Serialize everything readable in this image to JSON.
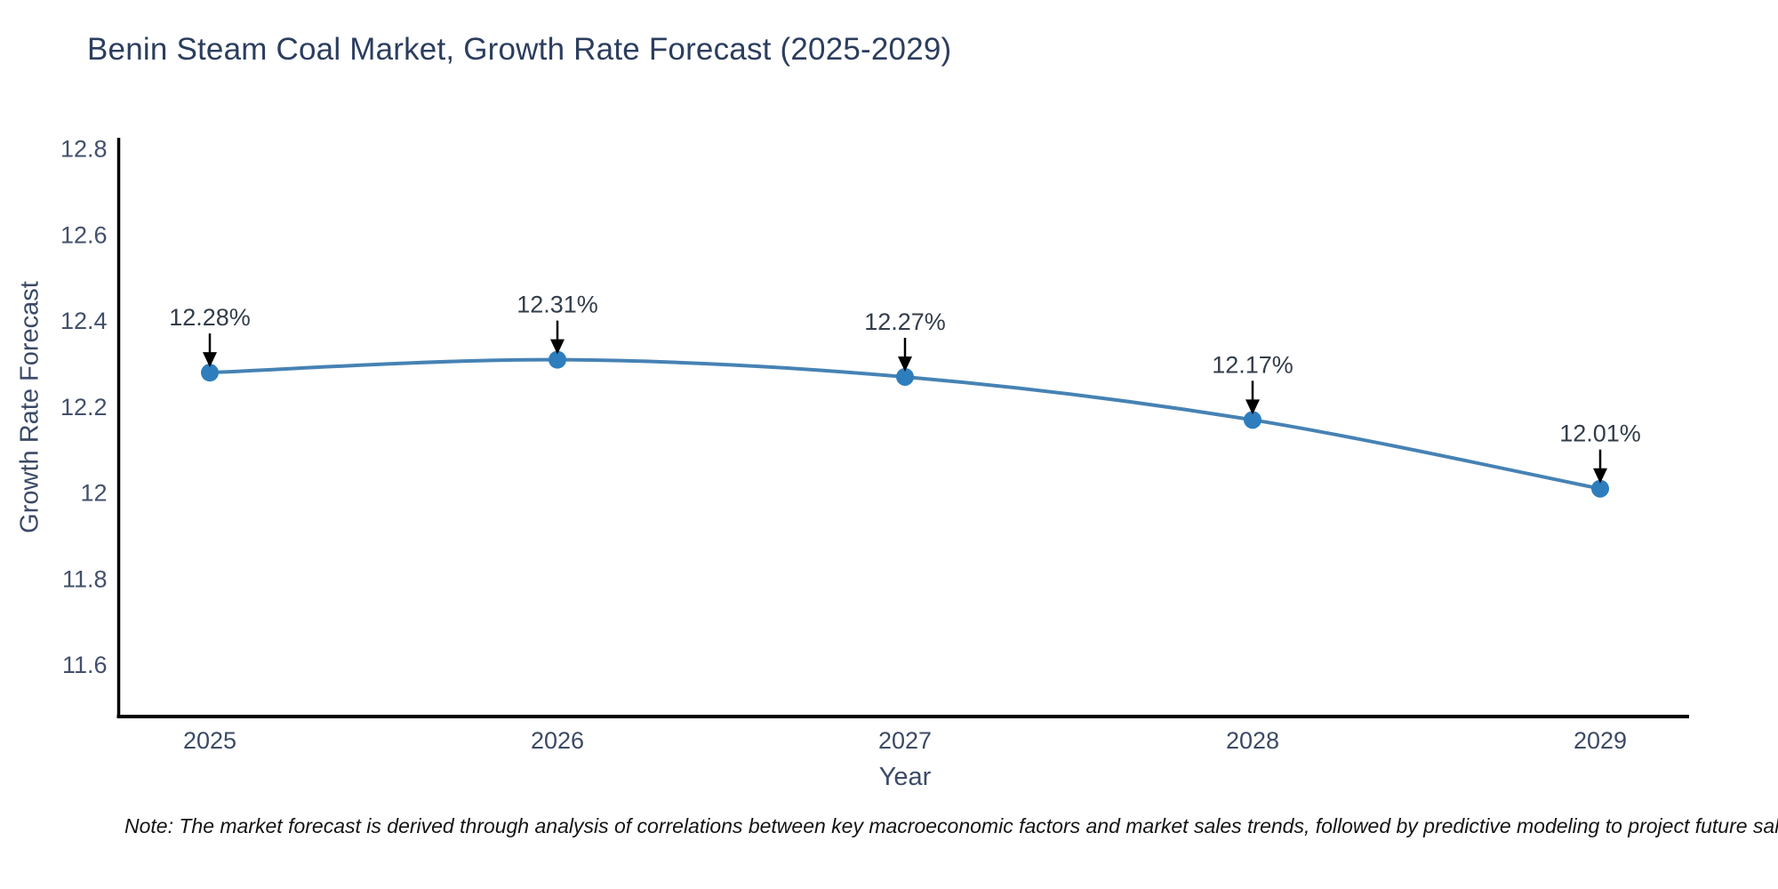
{
  "page": {
    "background": "#ffffff"
  },
  "chart_data": {
    "type": "line",
    "title": "Benin Steam Coal Market, Growth Rate Forecast (2025-2029)",
    "xlabel": "Year",
    "ylabel": "Growth Rate Forecast",
    "categories": [
      "2025",
      "2026",
      "2027",
      "2028",
      "2029"
    ],
    "series": [
      {
        "name": "Growth Rate Forecast",
        "values": [
          12.28,
          12.31,
          12.27,
          12.17,
          12.01
        ]
      }
    ],
    "point_labels": [
      "12.28%",
      "12.31%",
      "12.27%",
      "12.17%",
      "12.01%"
    ],
    "yticks": [
      12.8,
      12.6,
      12.4,
      12.2,
      12,
      11.8,
      11.6
    ],
    "ytick_labels": [
      "12.8",
      "12.6",
      "12.4",
      "12.2",
      "12",
      "11.8",
      "11.6"
    ],
    "ylim": [
      11.48,
      12.82
    ],
    "grid": false,
    "legend": "none",
    "colors": {
      "line": "#4682b4",
      "marker": "#2e7ebe",
      "axis": "#000000",
      "annotation_arrow": "#000000",
      "title_text": "#2c3e5e",
      "tick_text": "#42506b",
      "label_text": "#333d4a"
    }
  },
  "note": {
    "text": "Note: The market forecast is derived through analysis of correlations between key macroeconomic factors and market sales trends, followed by predictive modeling to project future sal"
  }
}
